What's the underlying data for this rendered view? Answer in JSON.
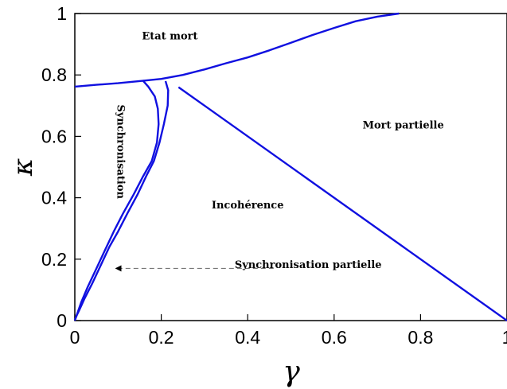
{
  "chart_data": {
    "type": "line",
    "xlabel": "γ",
    "ylabel": "κ",
    "xlim": [
      0,
      1
    ],
    "ylim": [
      0,
      1
    ],
    "xticks": [
      0,
      0.2,
      0.4,
      0.6,
      0.8,
      1
    ],
    "yticks": [
      0,
      0.2,
      0.4,
      0.6,
      0.8,
      1
    ],
    "xtick_labels": [
      "0",
      "0.2",
      "0.4",
      "0.6",
      "0.8",
      "1"
    ],
    "ytick_labels": [
      "0",
      "0.2",
      "0.4",
      "0.6",
      "0.8",
      "1"
    ],
    "line_color": "#1010e0",
    "curves": [
      {
        "x": [
          0,
          0.05,
          0.1,
          0.15,
          0.2,
          0.25,
          0.3,
          0.35,
          0.4,
          0.45,
          0.5,
          0.55,
          0.6,
          0.65,
          0.7,
          0.75
        ],
        "y": [
          0.762,
          0.768,
          0.773,
          0.78,
          0.787,
          0.8,
          0.818,
          0.838,
          0.857,
          0.88,
          0.905,
          0.93,
          0.953,
          0.975,
          0.99,
          1.0
        ]
      },
      {
        "x": [
          0.157,
          0.17,
          0.185,
          0.192,
          0.194,
          0.19,
          0.178,
          0.158,
          0.136,
          0.112,
          0.09,
          0.07,
          0.05,
          0.03,
          0.015,
          0.005,
          0
        ],
        "y": [
          0.782,
          0.762,
          0.73,
          0.69,
          0.64,
          0.58,
          0.52,
          0.47,
          0.41,
          0.35,
          0.29,
          0.23,
          0.17,
          0.11,
          0.06,
          0.02,
          0
        ]
      },
      {
        "x": [
          0.21,
          0.216,
          0.215,
          0.206,
          0.196,
          0.183,
          0.165,
          0.145,
          0.122,
          0.1,
          0.08,
          0.06,
          0.04,
          0.022,
          0.009,
          0.002
        ],
        "y": [
          0.78,
          0.75,
          0.7,
          0.64,
          0.58,
          0.52,
          0.47,
          0.41,
          0.35,
          0.29,
          0.24,
          0.18,
          0.12,
          0.07,
          0.03,
          0.01
        ]
      },
      {
        "x": [
          0.24,
          1.0
        ],
        "y": [
          0.76,
          0.0
        ]
      }
    ],
    "annotations": [
      {
        "text": "Etat mort",
        "x": 0.22,
        "y": 0.925,
        "rotate": 0
      },
      {
        "text": "Mort partielle",
        "x": 0.76,
        "y": 0.635,
        "rotate": 0
      },
      {
        "text": "Incohérence",
        "x": 0.4,
        "y": 0.375,
        "rotate": 0
      },
      {
        "text": "Synchronisation partielle",
        "x": 0.54,
        "y": 0.18,
        "rotate": 0
      },
      {
        "text": "Synchronisation",
        "x": 0.105,
        "y": 0.55,
        "rotate": 90
      }
    ],
    "arrow": {
      "from": [
        0.46,
        0.17
      ],
      "to": [
        0.095,
        0.17
      ]
    },
    "grid": false
  }
}
